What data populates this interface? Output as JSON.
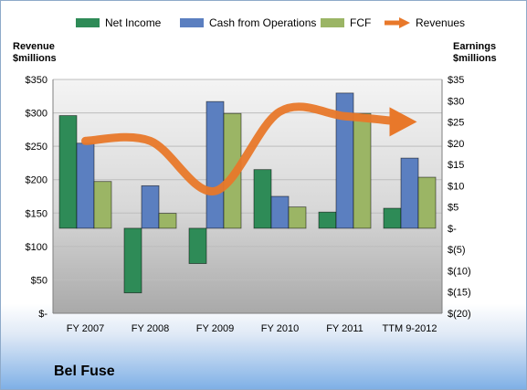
{
  "colors": {
    "net_income": "#2e8b57",
    "cash_ops": "#5b7fc0",
    "fcf": "#9bb565",
    "revenues": "#e8782a"
  },
  "legend": {
    "net_income": "Net Income",
    "cash_ops": "Cash from Operations",
    "fcf": "FCF",
    "revenues": "Revenues"
  },
  "company_name": "Bel Fuse",
  "chart_data": {
    "type": "bar",
    "categories": [
      "FY 2007",
      "FY 2008",
      "FY 2009",
      "FY 2010",
      "FY 2011",
      "TTM 9-2012"
    ],
    "left_axis": {
      "title": "Revenue\n$millions",
      "range": [
        0,
        350
      ],
      "ticks": [
        "$-",
        "$50",
        "$100",
        "$150",
        "$200",
        "$250",
        "$300",
        "$350"
      ]
    },
    "right_axis": {
      "title": "Earnings\n$millions",
      "range": [
        -20,
        35
      ],
      "ticks": [
        "$(20)",
        "$(15)",
        "$(10)",
        "$(5)",
        "$-",
        "$5",
        "$10",
        "$15",
        "$20",
        "$25",
        "$30",
        "$35"
      ]
    },
    "series": [
      {
        "name": "Net Income",
        "axis": "right",
        "kind": "bar",
        "values": [
          26.5,
          -15.2,
          -8.3,
          13.8,
          3.8,
          4.7
        ]
      },
      {
        "name": "Cash from Operations",
        "axis": "right",
        "kind": "bar",
        "values": [
          20.0,
          10.0,
          29.8,
          7.5,
          31.8,
          16.5
        ]
      },
      {
        "name": "FCF",
        "axis": "right",
        "kind": "bar",
        "values": [
          11.0,
          3.5,
          27.0,
          5.0,
          27.0,
          12.0
        ]
      },
      {
        "name": "Revenues",
        "axis": "left",
        "kind": "line",
        "values": [
          258,
          258,
          183,
          302,
          295,
          288
        ]
      }
    ],
    "grid": true,
    "legend_position": "top"
  }
}
